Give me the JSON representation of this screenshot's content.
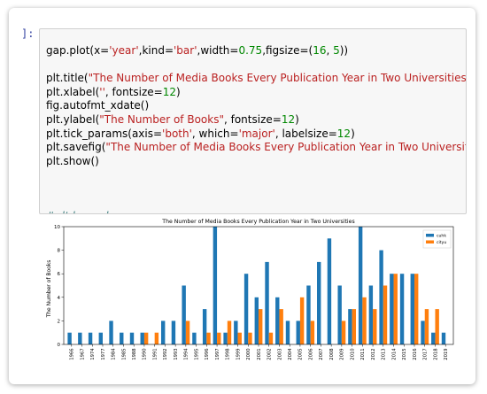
{
  "cell": {
    "prompt": "]:",
    "code": [
      [
        [
          "t",
          "gap.plot(x="
        ],
        [
          "s",
          "'year'"
        ],
        [
          "t",
          ",kind="
        ],
        [
          "s",
          "'bar'"
        ],
        [
          "t",
          ",width="
        ],
        [
          "n",
          "0.75"
        ],
        [
          "t",
          ",figsize=("
        ],
        [
          "n",
          "16"
        ],
        [
          "t",
          ", "
        ],
        [
          "n",
          "5"
        ],
        [
          "t",
          "))"
        ]
      ],
      [
        [
          "t",
          ""
        ]
      ],
      [
        [
          "t",
          "plt.title("
        ],
        [
          "s",
          "\"The Number of Media Books Every Publication Year in Two Universities\""
        ]
      ],
      [
        [
          "t",
          "plt.xlabel("
        ],
        [
          "s",
          "''"
        ],
        [
          "t",
          ", fontsize="
        ],
        [
          "n",
          "12"
        ],
        [
          "t",
          ")"
        ]
      ],
      [
        [
          "t",
          "fig.autofmt_xdate()"
        ]
      ],
      [
        [
          "t",
          "plt.ylabel("
        ],
        [
          "s",
          "\"The Number of Books\""
        ],
        [
          "t",
          ", fontsize="
        ],
        [
          "n",
          "12"
        ],
        [
          "t",
          ")"
        ]
      ],
      [
        [
          "t",
          "plt.tick_params(axis="
        ],
        [
          "s",
          "'both'"
        ],
        [
          "t",
          ", which="
        ],
        [
          "s",
          "'major'"
        ],
        [
          "t",
          ", labelsize="
        ],
        [
          "n",
          "12"
        ],
        [
          "t",
          ")"
        ]
      ],
      [
        [
          "t",
          "plt.savefig("
        ],
        [
          "s",
          "\"The Number of Media Books Every Publication Year in Two Universiti"
        ]
      ],
      [
        [
          "t",
          "plt.show()"
        ]
      ],
      [
        [
          "t",
          ""
        ]
      ],
      [
        [
          "t",
          ""
        ]
      ],
      [
        [
          "t",
          ""
        ]
      ],
      [
        [
          "c",
          "#plt.legend"
        ]
      ]
    ]
  },
  "chart_data": {
    "type": "bar",
    "title": "The Number of Media Books Every Publication Year in Two Universities",
    "xlabel": "",
    "ylabel": "The Number of Books",
    "ylim": [
      0,
      10
    ],
    "yticks": [
      0,
      2,
      4,
      6,
      8,
      10
    ],
    "legend_position": "top-right",
    "categories": [
      "1966",
      "1967",
      "1974",
      "1977",
      "1984",
      "1985",
      "1988",
      "1990",
      "1991",
      "1992",
      "1993",
      "1994",
      "1995",
      "1996",
      "1997",
      "1998",
      "1999",
      "2000",
      "2001",
      "2002",
      "2003",
      "2004",
      "2005",
      "2006",
      "2007",
      "2008",
      "2009",
      "2010",
      "2011",
      "2012",
      "2013",
      "2014",
      "2015",
      "2016",
      "2017",
      "2018",
      "2019"
    ],
    "series": [
      {
        "name": "cuhk",
        "color": "#1f77b4",
        "values": [
          1,
          1,
          1,
          1,
          2,
          1,
          1,
          1,
          0,
          2,
          2,
          5,
          1,
          3,
          10,
          1,
          2,
          6,
          4,
          7,
          4,
          2,
          2,
          5,
          7,
          9,
          5,
          3,
          10,
          5,
          8,
          6,
          6,
          6,
          2,
          1,
          1
        ]
      },
      {
        "name": "cityu",
        "color": "#ff7f0e",
        "values": [
          0,
          0,
          0,
          0,
          0,
          0,
          0,
          1,
          1,
          0,
          0,
          2,
          0,
          1,
          1,
          2,
          1,
          1,
          3,
          1,
          3,
          0,
          4,
          2,
          0,
          0,
          2,
          3,
          4,
          3,
          5,
          6,
          0,
          6,
          3,
          3,
          0
        ]
      }
    ]
  }
}
